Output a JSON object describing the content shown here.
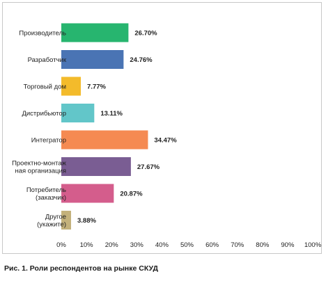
{
  "chart_data": {
    "type": "bar",
    "orientation": "horizontal",
    "categories": [
      [
        "Производитель"
      ],
      [
        "Разработчик"
      ],
      [
        "Торговый дом"
      ],
      [
        "Дистрибьютор"
      ],
      [
        "Интегратор"
      ],
      [
        "Проектно-монтаж",
        "ная организация"
      ],
      [
        "Потребитель",
        "(заказчик)"
      ],
      [
        "Другое",
        "(укажите)"
      ]
    ],
    "values": [
      26.7,
      24.76,
      7.77,
      13.11,
      34.47,
      27.67,
      20.87,
      3.88
    ],
    "value_labels": [
      "26.70%",
      "24.76%",
      "7.77%",
      "13.11%",
      "34.47%",
      "27.67%",
      "20.87%",
      "3.88%"
    ],
    "colors": [
      "#27b56f",
      "#4a74b4",
      "#f3bb2b",
      "#62c6c9",
      "#f58a52",
      "#7a5d93",
      "#d45d8c",
      "#c3b17b"
    ],
    "xlim": [
      0,
      100
    ],
    "xticks": [
      "0%",
      "10%",
      "20%",
      "30%",
      "40%",
      "50%",
      "60%",
      "70%",
      "80%",
      "90%",
      "100%"
    ],
    "grid": false,
    "legend": "none"
  },
  "caption": "Рис. 1. Роли респондентов на рынке СКУД"
}
